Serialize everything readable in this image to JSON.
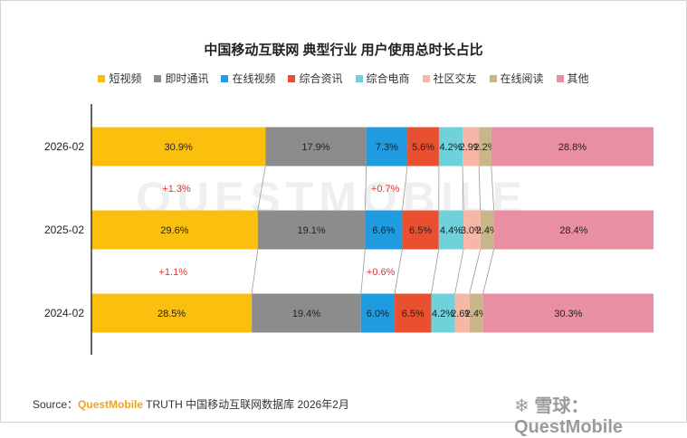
{
  "title": "中国移动互联网 典型行业 用户使用总时长占比",
  "watermark": "QUESTMOBILE",
  "source": {
    "prefix": "Source：",
    "brand": "QuestMobile",
    "suffix": " TRUTH 中国移动互联网数据库 2026年2月"
  },
  "xueqiu": "❄ 雪球：QuestMobile",
  "chart_data": {
    "type": "bar",
    "orientation": "horizontal",
    "stacked": "100%",
    "categories": [
      "2026-02",
      "2025-02",
      "2024-02"
    ],
    "series": [
      {
        "name": "短视频",
        "color": "#fbbf0d",
        "values": [
          30.9,
          29.6,
          28.5
        ],
        "labels": [
          "30.9%",
          "29.6%",
          "28.5%"
        ]
      },
      {
        "name": "即时通讯",
        "color": "#8c8c8c",
        "values": [
          17.9,
          19.1,
          19.4
        ],
        "labels": [
          "17.9%",
          "19.1%",
          "19.4%"
        ]
      },
      {
        "name": "在线视频",
        "color": "#1f9be0",
        "values": [
          7.3,
          6.6,
          6.0
        ],
        "labels": [
          "7.3%",
          "6.6%",
          "6.0%"
        ]
      },
      {
        "name": "综合资讯",
        "color": "#e8502f",
        "values": [
          5.6,
          6.5,
          6.5
        ],
        "labels": [
          "5.6%",
          "6.5%",
          "6.5%"
        ]
      },
      {
        "name": "综合电商",
        "color": "#6fd1d9",
        "values": [
          4.2,
          4.4,
          4.2
        ],
        "labels": [
          "4.2%",
          "4.4%",
          "4.2%"
        ]
      },
      {
        "name": "社区交友",
        "color": "#f6b7a6",
        "values": [
          2.9,
          3.0,
          2.6
        ],
        "labels": [
          "2.9%",
          "3.0%",
          "2.6%"
        ]
      },
      {
        "name": "在线阅读",
        "color": "#c6b68a",
        "values": [
          2.2,
          2.4,
          2.4
        ],
        "labels": [
          "2.2%",
          "2.4%",
          "2.4%"
        ]
      },
      {
        "name": "其他",
        "color": "#e98fa4",
        "values": [
          28.8,
          28.4,
          30.3
        ],
        "labels": [
          "28.8%",
          "28.4%",
          "30.3%"
        ]
      }
    ],
    "annotations": [
      {
        "between": [
          "2026-02",
          "2025-02"
        ],
        "series": "短视频",
        "text": "+1.3%",
        "color": "#e8332f"
      },
      {
        "between": [
          "2026-02",
          "2025-02"
        ],
        "series": "在线视频",
        "text": "+0.7%",
        "color": "#e8332f"
      },
      {
        "between": [
          "2025-02",
          "2024-02"
        ],
        "series": "短视频",
        "text": "+1.1%",
        "color": "#e8332f"
      },
      {
        "between": [
          "2025-02",
          "2024-02"
        ],
        "series": "在线视频",
        "text": "+0.6%",
        "color": "#e8332f"
      }
    ],
    "legend_position": "top",
    "grid": false
  }
}
